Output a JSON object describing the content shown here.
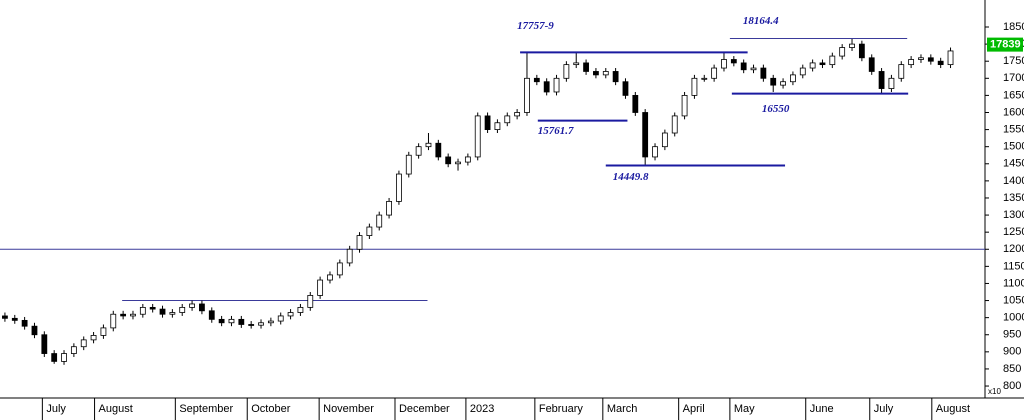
{
  "chart_data": {
    "type": "candlestick",
    "unit_label": "x10",
    "last": {
      "value": 1783.9,
      "label": "17839"
    },
    "xlim": [
      0,
      100
    ],
    "xticks": [
      {
        "value": 4.3,
        "label": "July"
      },
      {
        "value": 9.6,
        "label": "August"
      },
      {
        "value": 17.8,
        "label": "September"
      },
      {
        "value": 25.1,
        "label": "October"
      },
      {
        "value": 32.4,
        "label": "November"
      },
      {
        "value": 40.1,
        "label": "December"
      },
      {
        "value": 47.3,
        "label": "2023"
      },
      {
        "value": 54.3,
        "label": "February"
      },
      {
        "value": 61.2,
        "label": "March"
      },
      {
        "value": 68.9,
        "label": "April"
      },
      {
        "value": 74.1,
        "label": "May"
      },
      {
        "value": 81.8,
        "label": "June"
      },
      {
        "value": 88.3,
        "label": "July"
      },
      {
        "value": 94.6,
        "label": "August"
      }
    ],
    "ylim": [
      765,
      1929
    ],
    "yticks": [
      800,
      850,
      900,
      950,
      1000,
      1050,
      1100,
      1150,
      1200,
      1250,
      1300,
      1350,
      1400,
      1450,
      1500,
      1550,
      1600,
      1650,
      1700,
      1750,
      1800,
      1850
    ],
    "open": [
      1005,
      998,
      992,
      975,
      950,
      895,
      872,
      895,
      915,
      935,
      948,
      970,
      1010,
      1005,
      1010,
      1030,
      1025,
      1010,
      1015,
      1030,
      1040,
      1020,
      995,
      985,
      995,
      980,
      978,
      985,
      990,
      1005,
      1015,
      1030,
      1065,
      1110,
      1125,
      1160,
      1200,
      1240,
      1265,
      1300,
      1340,
      1420,
      1475,
      1500,
      1510,
      1470,
      1450,
      1455,
      1470,
      1590,
      1550,
      1570,
      1590,
      1600,
      1700,
      1690,
      1660,
      1700,
      1740,
      1745,
      1720,
      1710,
      1720,
      1690,
      1650,
      1600,
      1470,
      1500,
      1540,
      1590,
      1650,
      1700,
      1700,
      1730,
      1755,
      1745,
      1725,
      1730,
      1700,
      1680,
      1690,
      1710,
      1730,
      1745,
      1740,
      1765,
      1790,
      1800,
      1760,
      1720,
      1670,
      1700,
      1740,
      1755,
      1760,
      1750,
      1740
    ],
    "high": [
      1015,
      1008,
      1002,
      985,
      960,
      905,
      905,
      925,
      945,
      958,
      980,
      1020,
      1020,
      1020,
      1040,
      1040,
      1035,
      1025,
      1040,
      1050,
      1050,
      1030,
      1005,
      1005,
      1005,
      990,
      995,
      1000,
      1015,
      1025,
      1040,
      1075,
      1120,
      1135,
      1170,
      1210,
      1250,
      1275,
      1310,
      1350,
      1430,
      1485,
      1510,
      1540,
      1520,
      1480,
      1465,
      1480,
      1600,
      1600,
      1580,
      1600,
      1610,
      1776,
      1710,
      1700,
      1710,
      1750,
      1776,
      1755,
      1730,
      1730,
      1730,
      1700,
      1660,
      1610,
      1510,
      1550,
      1600,
      1660,
      1710,
      1710,
      1740,
      1776,
      1765,
      1755,
      1740,
      1740,
      1710,
      1700,
      1720,
      1740,
      1755,
      1755,
      1775,
      1800,
      1816,
      1810,
      1770,
      1730,
      1710,
      1750,
      1765,
      1770,
      1770,
      1760,
      1790
    ],
    "low": [
      988,
      982,
      965,
      940,
      885,
      865,
      862,
      885,
      905,
      925,
      938,
      960,
      995,
      995,
      1000,
      1015,
      1000,
      1000,
      1005,
      1020,
      1010,
      985,
      975,
      975,
      970,
      968,
      968,
      975,
      980,
      995,
      1005,
      1020,
      1055,
      1100,
      1115,
      1150,
      1190,
      1230,
      1255,
      1290,
      1330,
      1410,
      1465,
      1490,
      1460,
      1440,
      1430,
      1445,
      1460,
      1540,
      1540,
      1560,
      1580,
      1590,
      1680,
      1650,
      1650,
      1690,
      1730,
      1710,
      1700,
      1700,
      1680,
      1640,
      1590,
      1445,
      1460,
      1490,
      1530,
      1580,
      1640,
      1690,
      1690,
      1720,
      1735,
      1715,
      1715,
      1690,
      1660,
      1670,
      1680,
      1700,
      1720,
      1730,
      1730,
      1755,
      1780,
      1750,
      1710,
      1655,
      1660,
      1690,
      1730,
      1745,
      1740,
      1730,
      1730
    ],
    "close": [
      998,
      992,
      975,
      950,
      895,
      872,
      895,
      915,
      935,
      948,
      970,
      1010,
      1005,
      1010,
      1030,
      1025,
      1010,
      1015,
      1030,
      1040,
      1020,
      995,
      985,
      995,
      980,
      978,
      985,
      990,
      1005,
      1015,
      1030,
      1065,
      1110,
      1125,
      1160,
      1200,
      1240,
      1265,
      1300,
      1340,
      1420,
      1475,
      1500,
      1510,
      1470,
      1450,
      1455,
      1470,
      1590,
      1550,
      1570,
      1590,
      1600,
      1700,
      1690,
      1660,
      1700,
      1740,
      1745,
      1720,
      1710,
      1720,
      1690,
      1650,
      1600,
      1470,
      1500,
      1540,
      1590,
      1650,
      1700,
      1700,
      1730,
      1755,
      1745,
      1725,
      1730,
      1700,
      1680,
      1690,
      1710,
      1730,
      1745,
      1740,
      1765,
      1790,
      1800,
      1760,
      1720,
      1670,
      1700,
      1740,
      1755,
      1760,
      1750,
      1740,
      1780
    ],
    "levels": [
      {
        "label": "17757-9",
        "value": 1775.79,
        "x": [
          52.8,
          75.9
        ]
      },
      {
        "label": "18164.4",
        "value": 1816.44,
        "x": [
          74.1,
          92.1
        ]
      },
      {
        "label": "15761.7",
        "value": 1576.17,
        "x": [
          54.6,
          63.7
        ]
      },
      {
        "label": "14449.8",
        "value": 1444.98,
        "x": [
          61.5,
          79.7
        ]
      },
      {
        "label": "16550",
        "value": 1655,
        "x": [
          74.3,
          92.2
        ]
      }
    ],
    "lines": [
      {
        "value": 1050,
        "x": [
          12.4,
          43.4
        ]
      },
      {
        "value": 1200,
        "x": [
          0,
          100
        ]
      }
    ]
  }
}
